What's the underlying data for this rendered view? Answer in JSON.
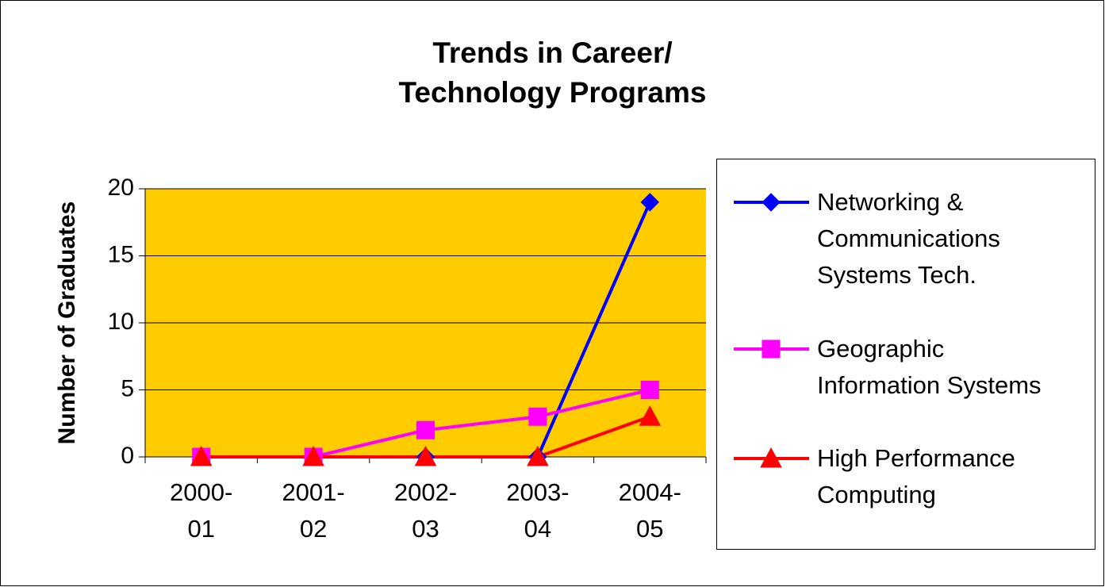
{
  "chart_data": {
    "type": "line",
    "title": "Trends in Career/\nTechnology Programs",
    "y_label": "Number of Graduates",
    "categories": [
      "2000-\n01",
      "2001-\n02",
      "2002-\n03",
      "2003-\n04",
      "2004-\n05"
    ],
    "series": [
      {
        "name": "Networking &\nCommunications\nSystems Tech.",
        "color": "#0000ff",
        "marker": "diamond",
        "values": [
          0,
          0,
          0,
          0,
          19
        ]
      },
      {
        "name": "Geographic\nInformation Systems",
        "color": "#ff00ff",
        "marker": "square",
        "values": [
          0,
          0,
          2,
          3,
          5
        ]
      },
      {
        "name": "High Performance\nComputing",
        "color": "#ff0000",
        "marker": "triangle",
        "values": [
          0,
          0,
          0,
          0,
          3
        ]
      }
    ],
    "ylim": [
      0,
      20
    ],
    "yticks": [
      0,
      5,
      10,
      15,
      20
    ],
    "grid": true,
    "plot_background": "#ffcc00",
    "legend": "right"
  }
}
